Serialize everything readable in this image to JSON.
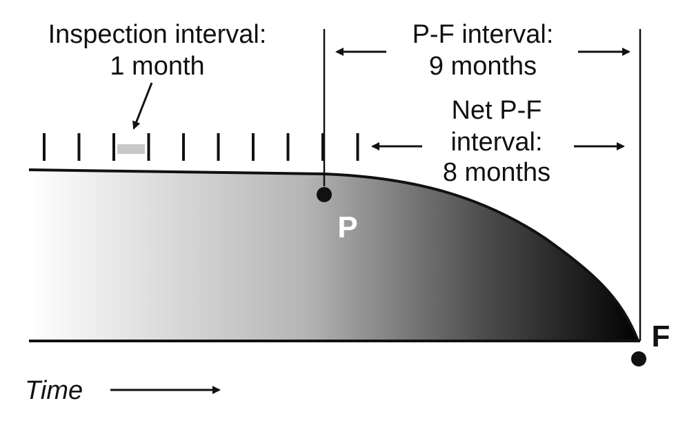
{
  "inspection": {
    "line1": "Inspection interval:",
    "line2": "1 month",
    "tick_count": 10
  },
  "pf_interval": {
    "line1": "P-F interval:",
    "line2": "9 months"
  },
  "net_pf_interval": {
    "line1": "Net P-F",
    "line2": "interval:",
    "line3": "8 months"
  },
  "points": {
    "p_label": "P",
    "f_label": "F"
  },
  "time_axis": {
    "label": "Time"
  },
  "colors": {
    "line": "#111111",
    "gradient_start": "#ffffff",
    "gradient_end": "#000000",
    "interval_highlight": "#c8c8c8",
    "p_label": "#ffffff"
  }
}
